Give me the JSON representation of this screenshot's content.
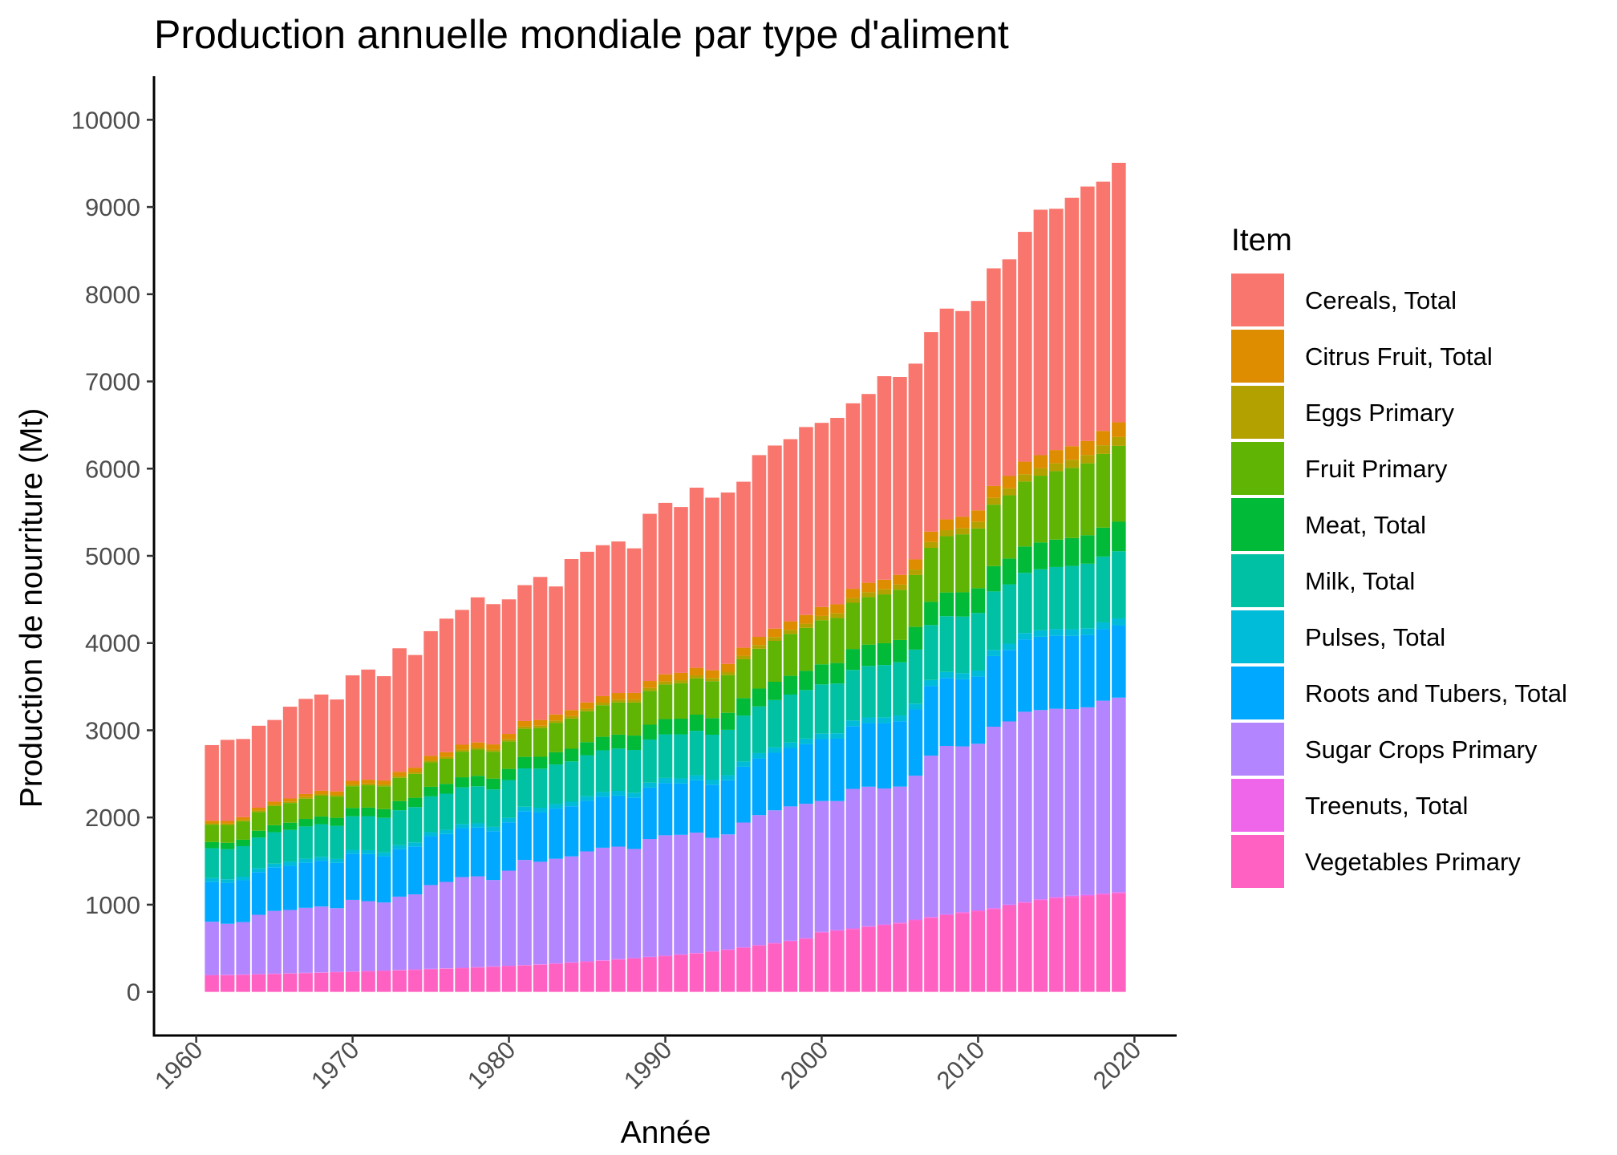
{
  "chart_data": {
    "type": "bar",
    "stacked": true,
    "title": "Production annuelle mondiale par type d'aliment",
    "xlabel": "Année",
    "ylabel": "Production de nourriture (Mt)",
    "xlim": [
      1957.3,
      2022.7
    ],
    "ylim": [
      -500,
      10500
    ],
    "xticks": [
      1960,
      1970,
      1980,
      1990,
      2000,
      2010,
      2020
    ],
    "yticks": [
      0,
      1000,
      2000,
      3000,
      4000,
      5000,
      6000,
      7000,
      8000,
      9000,
      10000
    ],
    "grid": false,
    "legend": {
      "title": "Item",
      "position": "right"
    },
    "x": [
      1961,
      1962,
      1963,
      1964,
      1965,
      1966,
      1967,
      1968,
      1969,
      1970,
      1971,
      1972,
      1973,
      1974,
      1975,
      1976,
      1977,
      1978,
      1979,
      1980,
      1981,
      1982,
      1983,
      1984,
      1985,
      1986,
      1987,
      1988,
      1989,
      1990,
      1991,
      1992,
      1993,
      1994,
      1995,
      1996,
      1997,
      1998,
      1999,
      2000,
      2001,
      2002,
      2003,
      2004,
      2005,
      2006,
      2007,
      2008,
      2009,
      2010,
      2011,
      2012,
      2013,
      2014,
      2015,
      2016,
      2017,
      2018,
      2019
    ],
    "series": [
      {
        "name": "Vegetables Primary",
        "color": "#FF61C3",
        "values": [
          190,
          192,
          196,
          200,
          205,
          210,
          215,
          220,
          226,
          230,
          235,
          240,
          247,
          253,
          260,
          266,
          272,
          280,
          288,
          295,
          303,
          312,
          322,
          333,
          345,
          357,
          370,
          383,
          397,
          410,
          425,
          440,
          460,
          480,
          505,
          530,
          555,
          580,
          610,
          680,
          700,
          720,
          745,
          765,
          785,
          820,
          850,
          880,
          905,
          925,
          950,
          990,
          1020,
          1050,
          1075,
          1090,
          1100,
          1115,
          1130
        ]
      },
      {
        "name": "Treenuts, Total",
        "color": "#F066EA",
        "values": [
          4,
          4,
          4,
          4,
          4,
          4,
          4,
          4,
          4,
          5,
          5,
          5,
          5,
          5,
          5,
          5,
          5,
          5,
          5,
          5,
          5,
          5,
          5,
          6,
          6,
          6,
          6,
          6,
          6,
          6,
          6,
          6,
          6,
          6,
          7,
          7,
          7,
          7,
          7,
          8,
          8,
          8,
          8,
          8,
          9,
          9,
          9,
          10,
          10,
          10,
          11,
          11,
          12,
          12,
          12,
          13,
          13,
          14,
          14
        ]
      },
      {
        "name": "Sugar Crops Primary",
        "color": "#B385FF",
        "values": [
          610,
          585,
          600,
          680,
          720,
          725,
          745,
          755,
          730,
          820,
          800,
          780,
          840,
          860,
          960,
          990,
          1040,
          1040,
          990,
          1090,
          1205,
          1175,
          1200,
          1215,
          1260,
          1290,
          1290,
          1250,
          1350,
          1380,
          1370,
          1380,
          1300,
          1320,
          1430,
          1490,
          1520,
          1540,
          1540,
          1500,
          1480,
          1600,
          1600,
          1560,
          1560,
          1650,
          1850,
          1930,
          1900,
          1910,
          2080,
          2100,
          2180,
          2170,
          2160,
          2140,
          2150,
          2210,
          2230
        ]
      },
      {
        "name": "Roots and Tubers, Total",
        "color": "#00A9FF",
        "values": [
          460,
          470,
          480,
          490,
          500,
          510,
          520,
          525,
          520,
          530,
          540,
          530,
          545,
          550,
          560,
          550,
          560,
          560,
          560,
          555,
          560,
          570,
          575,
          575,
          580,
          585,
          585,
          590,
          590,
          600,
          590,
          600,
          610,
          620,
          640,
          650,
          660,
          670,
          685,
          710,
          715,
          720,
          730,
          750,
          750,
          760,
          800,
          780,
          770,
          770,
          810,
          820,
          830,
          840,
          840,
          840,
          830,
          820,
          830
        ]
      },
      {
        "name": "Pulses, Total",
        "color": "#00BCD8",
        "values": [
          40,
          40,
          41,
          42,
          42,
          43,
          43,
          44,
          44,
          44,
          45,
          45,
          46,
          46,
          47,
          47,
          48,
          48,
          49,
          49,
          50,
          50,
          51,
          52,
          53,
          54,
          54,
          55,
          56,
          57,
          57,
          58,
          58,
          59,
          60,
          61,
          61,
          62,
          62,
          63,
          63,
          64,
          64,
          65,
          66,
          66,
          67,
          68,
          69,
          70,
          71,
          72,
          73,
          74,
          75,
          76,
          77,
          78,
          79
        ]
      },
      {
        "name": "Milk, Total",
        "color": "#00C1A3",
        "values": [
          344,
          346,
          350,
          355,
          360,
          365,
          370,
          375,
          380,
          385,
          390,
          395,
          400,
          405,
          410,
          415,
          420,
          425,
          430,
          435,
          440,
          448,
          455,
          462,
          470,
          478,
          485,
          490,
          495,
          500,
          505,
          510,
          515,
          520,
          527,
          535,
          543,
          550,
          557,
          565,
          570,
          580,
          590,
          600,
          610,
          620,
          630,
          640,
          650,
          660,
          670,
          680,
          690,
          700,
          710,
          725,
          740,
          755,
          770
        ]
      },
      {
        "name": "Meat, Total",
        "color": "#00BA38",
        "values": [
          70,
          72,
          74,
          77,
          80,
          83,
          86,
          89,
          92,
          95,
          98,
          101,
          104,
          107,
          110,
          113,
          116,
          120,
          124,
          128,
          132,
          136,
          140,
          145,
          150,
          155,
          160,
          165,
          170,
          175,
          180,
          185,
          190,
          195,
          200,
          205,
          210,
          215,
          220,
          230,
          235,
          240,
          245,
          250,
          255,
          260,
          266,
          272,
          278,
          284,
          290,
          296,
          302,
          308,
          314,
          320,
          326,
          332,
          338
        ]
      },
      {
        "name": "Fruit Primary",
        "color": "#5FB404",
        "values": [
          200,
          205,
          210,
          215,
          220,
          226,
          232,
          238,
          244,
          250,
          256,
          262,
          268,
          274,
          280,
          287,
          294,
          301,
          308,
          315,
          322,
          330,
          338,
          346,
          354,
          362,
          370,
          379,
          388,
          397,
          406,
          415,
          424,
          433,
          445,
          457,
          469,
          481,
          493,
          505,
          517,
          530,
          545,
          560,
          575,
          595,
          620,
          645,
          665,
          685,
          705,
          725,
          745,
          765,
          785,
          805,
          825,
          845,
          870
        ]
      },
      {
        "name": "Eggs Primary",
        "color": "#B3A100",
        "values": [
          15,
          15,
          16,
          16,
          17,
          17,
          18,
          18,
          19,
          19,
          20,
          20,
          21,
          21,
          22,
          22,
          23,
          23,
          24,
          24,
          25,
          26,
          27,
          28,
          29,
          30,
          31,
          32,
          33,
          34,
          35,
          36,
          37,
          38,
          40,
          42,
          44,
          46,
          48,
          50,
          52,
          54,
          56,
          58,
          60,
          63,
          66,
          69,
          72,
          75,
          78,
          81,
          84,
          87,
          90,
          93,
          96,
          99,
          102
        ]
      },
      {
        "name": "Citrus Fruit, Total",
        "color": "#DE8C00",
        "values": [
          30,
          31,
          32,
          33,
          34,
          35,
          36,
          38,
          40,
          42,
          44,
          46,
          48,
          50,
          52,
          54,
          56,
          58,
          60,
          62,
          64,
          66,
          68,
          70,
          72,
          74,
          76,
          78,
          80,
          82,
          84,
          86,
          88,
          90,
          92,
          94,
          96,
          98,
          100,
          102,
          104,
          106,
          108,
          110,
          112,
          116,
          120,
          124,
          128,
          132,
          136,
          140,
          144,
          148,
          152,
          156,
          160,
          164,
          168
        ]
      },
      {
        "name": "Cereals, Total",
        "color": "#F8766D",
        "values": [
          867,
          930,
          897,
          940,
          936,
          1052,
          1091,
          1104,
          1054,
          1210,
          1263,
          1196,
          1416,
          1292,
          1430,
          1531,
          1546,
          1664,
          1608,
          1543,
          1558,
          1640,
          1468,
          1731,
          1728,
          1731,
          1738,
          1658,
          1917,
          1967,
          1902,
          2066,
          1979,
          1965,
          1904,
          2084,
          2100,
          2089,
          2155,
          2112,
          2138,
          2127,
          2165,
          2334,
          2269,
          2245,
          2287,
          2417,
          2360,
          2402,
          2496,
          2485,
          2635,
          2815,
          2767,
          2847,
          2918,
          2858,
          2976
        ]
      }
    ]
  }
}
